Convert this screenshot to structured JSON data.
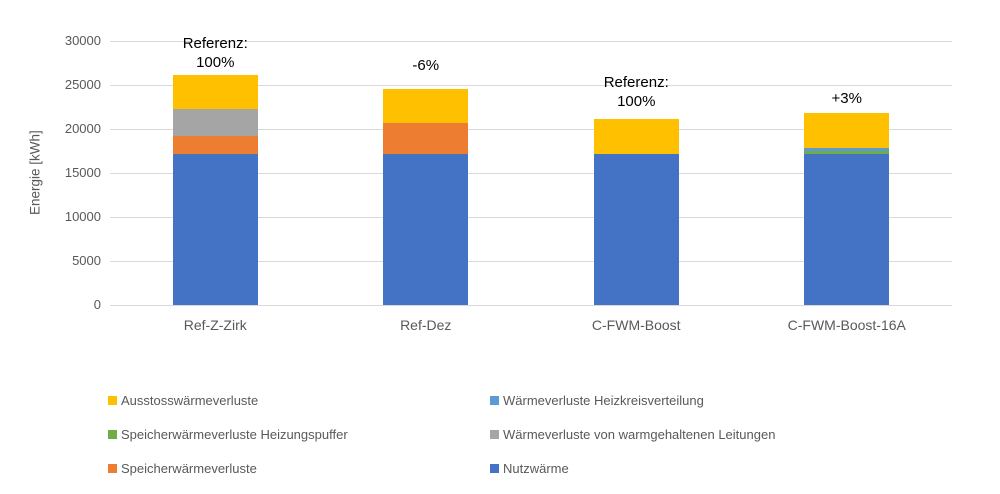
{
  "chart_data": {
    "type": "bar",
    "stacked": true,
    "title": "",
    "xlabel": "",
    "ylabel": "Energie [kWh]",
    "ylim": [
      0,
      30000
    ],
    "yticks": [
      0,
      5000,
      10000,
      15000,
      20000,
      25000,
      30000
    ],
    "grid": true,
    "legend_position": "bottom",
    "categories": [
      "Ref-Z-Zirk",
      "Ref-Dez",
      "C-FWM-Boost",
      "C-FWM-Boost-16A"
    ],
    "series": [
      {
        "name": "Nutzwärme",
        "color": "#4472C4",
        "values": [
          17200,
          17200,
          17200,
          17200
        ]
      },
      {
        "name": "Speicherwärmeverluste",
        "color": "#ED7D31",
        "values": [
          2000,
          3500,
          0,
          0
        ]
      },
      {
        "name": "Speicherwärmeverluste Heizungspuffer",
        "color": "#70AD47",
        "values": [
          0,
          0,
          0,
          300
        ]
      },
      {
        "name": "Wärmeverluste Heizkreisverteilung",
        "color": "#5B9BD5",
        "values": [
          0,
          0,
          0,
          300
        ]
      },
      {
        "name": "Wärmeverluste von warmgehaltenen Leitungen",
        "color": "#A5A5A5",
        "values": [
          3100,
          0,
          0,
          0
        ]
      },
      {
        "name": "Ausstosswärmeverluste",
        "color": "#FFC000",
        "values": [
          3800,
          3800,
          3900,
          4000
        ]
      }
    ],
    "totals": [
      26100,
      24500,
      21100,
      21800
    ],
    "annotations": [
      {
        "category": "Ref-Z-Zirk",
        "lines": [
          "Referenz:",
          "100%"
        ]
      },
      {
        "category": "Ref-Dez",
        "lines": [
          "-6%"
        ]
      },
      {
        "category": "C-FWM-Boost",
        "lines": [
          "Referenz:",
          "100%"
        ]
      },
      {
        "category": "C-FWM-Boost-16A",
        "lines": [
          "+3%"
        ]
      }
    ],
    "legend": {
      "columns": 2,
      "items": [
        {
          "label": "Ausstosswärmeverluste",
          "color": "#FFC000"
        },
        {
          "label": "Wärmeverluste Heizkreisverteilung",
          "color": "#5B9BD5"
        },
        {
          "label": "Speicherwärmeverluste Heizungspuffer",
          "color": "#70AD47"
        },
        {
          "label": "Wärmeverluste von warmgehaltenen Leitungen",
          "color": "#A5A5A5"
        },
        {
          "label": "Speicherwärmeverluste",
          "color": "#ED7D31"
        },
        {
          "label": "Nutzwärme",
          "color": "#4472C4"
        }
      ]
    },
    "colors": {
      "axis_text": "#595959",
      "annotation_text": "#000000",
      "gridline": "#D9D9D9",
      "background": "#FFFFFF"
    }
  }
}
